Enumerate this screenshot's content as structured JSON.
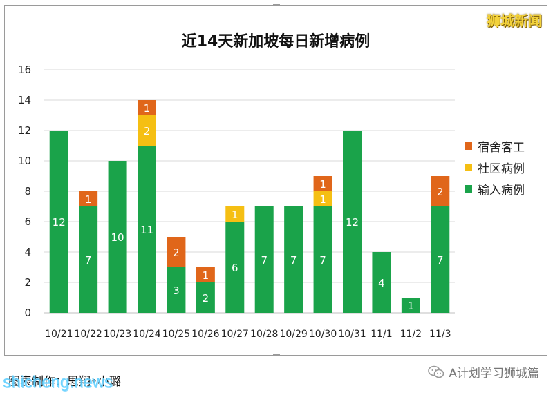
{
  "watermark": "狮城新闻",
  "credit": "图表制作：思翔•小璐",
  "site": "shicheng.news",
  "wechat_label": "A计划学习狮城篇",
  "colors": {
    "imported": "#1aa34a",
    "community": "#f5bf13",
    "dormitory": "#e0661a",
    "gridline": "#d9d9d9",
    "axis": "#bfbfbf"
  },
  "chart_data": {
    "type": "bar",
    "stacked": true,
    "title": "近14天新加坡每日新增病例",
    "categories": [
      "10/21",
      "10/22",
      "10/23",
      "10/24",
      "10/25",
      "10/26",
      "10/27",
      "10/28",
      "10/29",
      "10/30",
      "10/31",
      "11/1",
      "11/2",
      "11/3"
    ],
    "series": [
      {
        "name": "输入病例",
        "color": "#1aa34a",
        "values": [
          12,
          7,
          10,
          11,
          3,
          2,
          6,
          7,
          7,
          7,
          12,
          4,
          1,
          7
        ]
      },
      {
        "name": "社区病例",
        "color": "#f5bf13",
        "values": [
          0,
          0,
          0,
          2,
          0,
          0,
          1,
          0,
          0,
          1,
          0,
          0,
          0,
          0
        ]
      },
      {
        "name": "宿舍客工",
        "color": "#e0661a",
        "values": [
          0,
          1,
          0,
          1,
          2,
          1,
          0,
          0,
          0,
          1,
          0,
          0,
          0,
          2
        ]
      }
    ],
    "legend_order": [
      "宿舍客工",
      "社区病例",
      "输入病例"
    ],
    "legend_position": "right",
    "yticks": [
      0,
      2,
      4,
      6,
      8,
      10,
      12,
      14,
      16
    ],
    "ylim": [
      0,
      16
    ],
    "grid": true
  }
}
